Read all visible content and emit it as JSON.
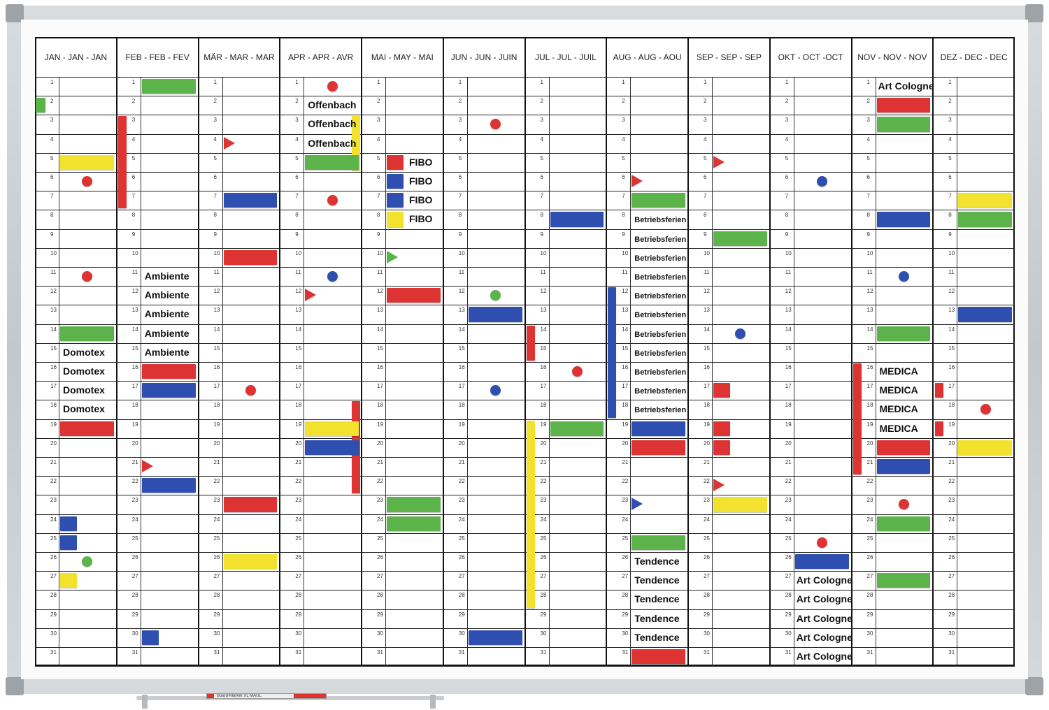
{
  "months": [
    "JAN - JAN - JAN",
    "FEB - FEB - FEV",
    "MÄR - MAR - MAR",
    "APR - APR - AVR",
    "MAI - MAY - MAI",
    "JUN - JUN - JUIN",
    "JUL - JUL - JUIL",
    "AUG - AUG - AOU",
    "SEP - SEP - SEP",
    "OKT - OCT -OCT",
    "NOV - NOV - NOV",
    "DEZ - DEC - DEC"
  ],
  "days_per_column": 31,
  "colors": {
    "red": "#dd3333",
    "green": "#5bb34a",
    "blue": "#2f4fb0",
    "yellow": "#f2e22e",
    "frame": "#c9cdd1"
  },
  "marker_text": "Board-Marker XL   MAUL",
  "magnets": [
    {
      "m": 0,
      "d": 2,
      "type": "bar",
      "color": "green",
      "w": "narrow"
    },
    {
      "m": 0,
      "d": 5,
      "type": "bar",
      "color": "yellow"
    },
    {
      "m": 0,
      "d": 6,
      "type": "dot",
      "color": "red"
    },
    {
      "m": 0,
      "d": 11,
      "type": "dot",
      "color": "red"
    },
    {
      "m": 0,
      "d": 14,
      "type": "bar",
      "color": "green"
    },
    {
      "m": 0,
      "d": 19,
      "type": "bar",
      "color": "red"
    },
    {
      "m": 0,
      "d": 24,
      "type": "bar",
      "color": "blue",
      "w": "small"
    },
    {
      "m": 0,
      "d": 25,
      "type": "bar",
      "color": "blue",
      "w": "small"
    },
    {
      "m": 0,
      "d": 26,
      "type": "dot",
      "color": "green"
    },
    {
      "m": 0,
      "d": 27,
      "type": "bar",
      "color": "yellow",
      "w": "small"
    },
    {
      "m": 1,
      "d": 1,
      "type": "bar",
      "color": "green"
    },
    {
      "m": 1,
      "d": 3,
      "type": "vbar",
      "color": "red",
      "to": 7,
      "side": "left"
    },
    {
      "m": 1,
      "d": 16,
      "type": "bar",
      "color": "red"
    },
    {
      "m": 1,
      "d": 17,
      "type": "bar",
      "color": "blue"
    },
    {
      "m": 1,
      "d": 21,
      "type": "tri",
      "color": "red"
    },
    {
      "m": 1,
      "d": 22,
      "type": "bar",
      "color": "blue"
    },
    {
      "m": 1,
      "d": 30,
      "type": "bar",
      "color": "blue",
      "w": "small"
    },
    {
      "m": 2,
      "d": 4,
      "type": "tri",
      "color": "red"
    },
    {
      "m": 2,
      "d": 7,
      "type": "bar",
      "color": "blue"
    },
    {
      "m": 2,
      "d": 10,
      "type": "bar",
      "color": "red"
    },
    {
      "m": 2,
      "d": 17,
      "type": "dot",
      "color": "red"
    },
    {
      "m": 2,
      "d": 23,
      "type": "bar",
      "color": "red"
    },
    {
      "m": 2,
      "d": 26,
      "type": "bar",
      "color": "yellow"
    },
    {
      "m": 3,
      "d": 1,
      "type": "dot",
      "color": "red"
    },
    {
      "m": 3,
      "d": 3,
      "type": "vbar",
      "color": "yellow",
      "to": 5,
      "side": "right"
    },
    {
      "m": 3,
      "d": 5,
      "type": "bar",
      "color": "green"
    },
    {
      "m": 3,
      "d": 7,
      "type": "dot",
      "color": "red"
    },
    {
      "m": 3,
      "d": 11,
      "type": "dot",
      "color": "blue"
    },
    {
      "m": 3,
      "d": 12,
      "type": "tri",
      "color": "red"
    },
    {
      "m": 3,
      "d": 18,
      "type": "vbar",
      "color": "red",
      "to": 22,
      "side": "right"
    },
    {
      "m": 3,
      "d": 19,
      "type": "bar",
      "color": "yellow"
    },
    {
      "m": 3,
      "d": 20,
      "type": "bar",
      "color": "blue"
    },
    {
      "m": 4,
      "d": 5,
      "type": "bar",
      "color": "red",
      "w": "small"
    },
    {
      "m": 4,
      "d": 6,
      "type": "bar",
      "color": "blue",
      "w": "small"
    },
    {
      "m": 4,
      "d": 7,
      "type": "bar",
      "color": "blue",
      "w": "small"
    },
    {
      "m": 4,
      "d": 8,
      "type": "bar",
      "color": "yellow",
      "w": "small"
    },
    {
      "m": 4,
      "d": 10,
      "type": "tri",
      "color": "green"
    },
    {
      "m": 4,
      "d": 12,
      "type": "bar",
      "color": "red"
    },
    {
      "m": 4,
      "d": 23,
      "type": "bar",
      "color": "green"
    },
    {
      "m": 4,
      "d": 24,
      "type": "bar",
      "color": "green"
    },
    {
      "m": 5,
      "d": 3,
      "type": "dot",
      "color": "red"
    },
    {
      "m": 5,
      "d": 12,
      "type": "dot",
      "color": "green"
    },
    {
      "m": 5,
      "d": 13,
      "type": "bar",
      "color": "blue"
    },
    {
      "m": 5,
      "d": 17,
      "type": "dot",
      "color": "blue"
    },
    {
      "m": 5,
      "d": 30,
      "type": "bar",
      "color": "blue"
    },
    {
      "m": 6,
      "d": 8,
      "type": "bar",
      "color": "blue"
    },
    {
      "m": 6,
      "d": 14,
      "type": "vbar",
      "color": "red",
      "to": 15,
      "side": "left"
    },
    {
      "m": 6,
      "d": 16,
      "type": "dot",
      "color": "red"
    },
    {
      "m": 6,
      "d": 19,
      "type": "bar",
      "color": "green"
    },
    {
      "m": 6,
      "d": 19,
      "type": "vbar",
      "color": "yellow",
      "to": 28,
      "side": "left"
    },
    {
      "m": 7,
      "d": 6,
      "type": "tri",
      "color": "red"
    },
    {
      "m": 7,
      "d": 7,
      "type": "bar",
      "color": "green"
    },
    {
      "m": 7,
      "d": 12,
      "type": "vbar",
      "color": "blue",
      "to": 18,
      "side": "left"
    },
    {
      "m": 7,
      "d": 19,
      "type": "bar",
      "color": "blue"
    },
    {
      "m": 7,
      "d": 20,
      "type": "bar",
      "color": "red"
    },
    {
      "m": 7,
      "d": 23,
      "type": "tri",
      "color": "blue"
    },
    {
      "m": 7,
      "d": 25,
      "type": "bar",
      "color": "green"
    },
    {
      "m": 7,
      "d": 31,
      "type": "bar",
      "color": "red"
    },
    {
      "m": 8,
      "d": 5,
      "type": "tri",
      "color": "red"
    },
    {
      "m": 8,
      "d": 9,
      "type": "bar",
      "color": "green"
    },
    {
      "m": 8,
      "d": 14,
      "type": "dot",
      "color": "blue"
    },
    {
      "m": 8,
      "d": 17,
      "type": "bar",
      "color": "red",
      "w": "small"
    },
    {
      "m": 8,
      "d": 19,
      "type": "bar",
      "color": "red",
      "w": "small"
    },
    {
      "m": 8,
      "d": 20,
      "type": "bar",
      "color": "red",
      "w": "small"
    },
    {
      "m": 8,
      "d": 22,
      "type": "tri",
      "color": "red"
    },
    {
      "m": 8,
      "d": 23,
      "type": "bar",
      "color": "yellow"
    },
    {
      "m": 9,
      "d": 6,
      "type": "dot",
      "color": "blue"
    },
    {
      "m": 9,
      "d": 25,
      "type": "dot",
      "color": "red"
    },
    {
      "m": 9,
      "d": 26,
      "type": "bar",
      "color": "blue"
    },
    {
      "m": 10,
      "d": 2,
      "type": "bar",
      "color": "red"
    },
    {
      "m": 10,
      "d": 3,
      "type": "bar",
      "color": "green"
    },
    {
      "m": 10,
      "d": 8,
      "type": "bar",
      "color": "blue"
    },
    {
      "m": 10,
      "d": 11,
      "type": "dot",
      "color": "blue"
    },
    {
      "m": 10,
      "d": 14,
      "type": "bar",
      "color": "green"
    },
    {
      "m": 10,
      "d": 16,
      "type": "vbar",
      "color": "red",
      "to": 21,
      "side": "left"
    },
    {
      "m": 10,
      "d": 20,
      "type": "bar",
      "color": "red"
    },
    {
      "m": 10,
      "d": 21,
      "type": "bar",
      "color": "blue"
    },
    {
      "m": 10,
      "d": 23,
      "type": "dot",
      "color": "red"
    },
    {
      "m": 10,
      "d": 24,
      "type": "bar",
      "color": "green"
    },
    {
      "m": 10,
      "d": 27,
      "type": "bar",
      "color": "green"
    },
    {
      "m": 11,
      "d": 7,
      "type": "bar",
      "color": "yellow"
    },
    {
      "m": 11,
      "d": 8,
      "type": "bar",
      "color": "green"
    },
    {
      "m": 11,
      "d": 13,
      "type": "bar",
      "color": "blue"
    },
    {
      "m": 11,
      "d": 17,
      "type": "bar",
      "color": "red",
      "w": "tiny"
    },
    {
      "m": 11,
      "d": 18,
      "type": "dot",
      "color": "red"
    },
    {
      "m": 11,
      "d": 19,
      "type": "bar",
      "color": "red",
      "w": "tiny"
    },
    {
      "m": 11,
      "d": 20,
      "type": "bar",
      "color": "yellow"
    }
  ],
  "labels": [
    {
      "m": 0,
      "d": 15,
      "text": "Domotex"
    },
    {
      "m": 0,
      "d": 16,
      "text": "Domotex"
    },
    {
      "m": 0,
      "d": 17,
      "text": "Domotex"
    },
    {
      "m": 0,
      "d": 18,
      "text": "Domotex"
    },
    {
      "m": 1,
      "d": 11,
      "text": "Ambiente"
    },
    {
      "m": 1,
      "d": 12,
      "text": "Ambiente"
    },
    {
      "m": 1,
      "d": 13,
      "text": "Ambiente"
    },
    {
      "m": 1,
      "d": 14,
      "text": "Ambiente"
    },
    {
      "m": 1,
      "d": 15,
      "text": "Ambiente"
    },
    {
      "m": 3,
      "d": 2,
      "text": "Offenbach"
    },
    {
      "m": 3,
      "d": 3,
      "text": "Offenbach"
    },
    {
      "m": 3,
      "d": 4,
      "text": "Offenbach"
    },
    {
      "m": 4,
      "d": 5,
      "text": "FIBO",
      "offset": "after-mag"
    },
    {
      "m": 4,
      "d": 6,
      "text": "FIBO",
      "offset": "after-mag"
    },
    {
      "m": 4,
      "d": 7,
      "text": "FIBO",
      "offset": "after-mag"
    },
    {
      "m": 4,
      "d": 8,
      "text": "FIBO",
      "offset": "after-mag"
    },
    {
      "m": 7,
      "d": 8,
      "text": "Betriebsferien",
      "small": true
    },
    {
      "m": 7,
      "d": 9,
      "text": "Betriebsferien",
      "small": true
    },
    {
      "m": 7,
      "d": 10,
      "text": "Betriebsferien",
      "small": true
    },
    {
      "m": 7,
      "d": 11,
      "text": "Betriebsferien",
      "small": true
    },
    {
      "m": 7,
      "d": 12,
      "text": "Betriebsferien",
      "small": true
    },
    {
      "m": 7,
      "d": 13,
      "text": "Betriebsferien",
      "small": true
    },
    {
      "m": 7,
      "d": 14,
      "text": "Betriebsferien",
      "small": true
    },
    {
      "m": 7,
      "d": 15,
      "text": "Betriebsferien",
      "small": true
    },
    {
      "m": 7,
      "d": 16,
      "text": "Betriebsferien",
      "small": true
    },
    {
      "m": 7,
      "d": 17,
      "text": "Betriebsferien",
      "small": true
    },
    {
      "m": 7,
      "d": 18,
      "text": "Betriebsferien",
      "small": true
    },
    {
      "m": 7,
      "d": 26,
      "text": "Tendence"
    },
    {
      "m": 7,
      "d": 27,
      "text": "Tendence"
    },
    {
      "m": 7,
      "d": 28,
      "text": "Tendence"
    },
    {
      "m": 7,
      "d": 29,
      "text": "Tendence"
    },
    {
      "m": 7,
      "d": 30,
      "text": "Tendence"
    },
    {
      "m": 9,
      "d": 27,
      "text": "Art Cologne",
      "mid": true
    },
    {
      "m": 9,
      "d": 28,
      "text": "Art Cologne",
      "mid": true
    },
    {
      "m": 9,
      "d": 29,
      "text": "Art Cologne",
      "mid": true
    },
    {
      "m": 9,
      "d": 30,
      "text": "Art Cologne",
      "mid": true
    },
    {
      "m": 9,
      "d": 31,
      "text": "Art Cologne",
      "mid": true
    },
    {
      "m": 10,
      "d": 1,
      "text": "Art Cologne",
      "mid": true
    },
    {
      "m": 10,
      "d": 16,
      "text": "MEDICA"
    },
    {
      "m": 10,
      "d": 17,
      "text": "MEDICA"
    },
    {
      "m": 10,
      "d": 18,
      "text": "MEDICA"
    },
    {
      "m": 10,
      "d": 19,
      "text": "MEDICA"
    }
  ]
}
